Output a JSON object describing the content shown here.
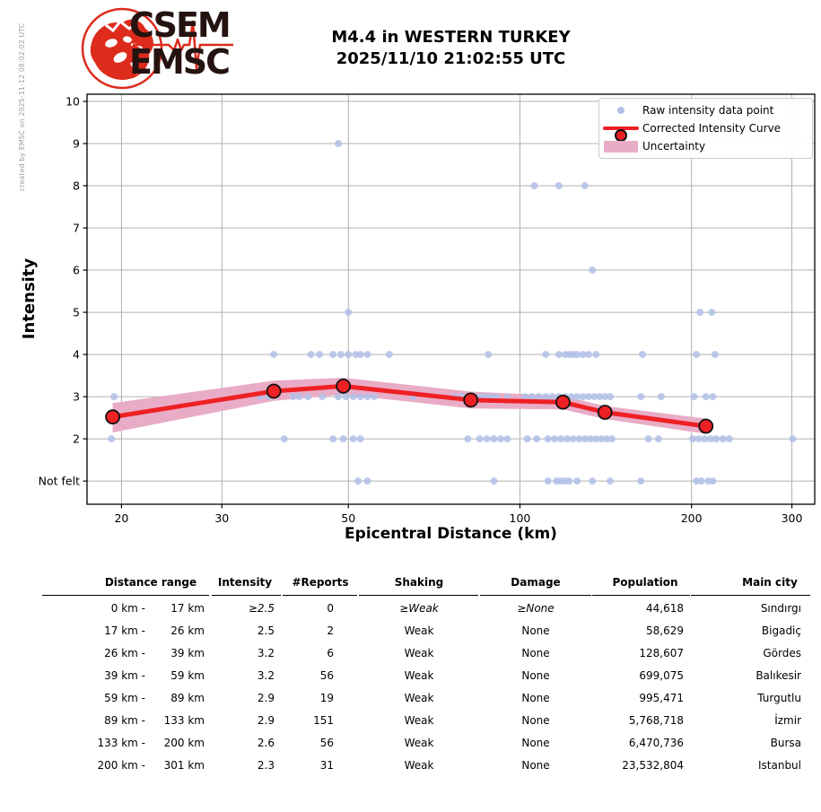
{
  "credit": "created by EMSC on 2025-11-12 08:02:02 UTC",
  "logo": {
    "line1": "CSEM",
    "line2": "EMSC"
  },
  "title": {
    "line1": "M4.4 in WESTERN TURKEY",
    "line2": "2025/11/10 21:02:55 UTC"
  },
  "chart_data": {
    "type": "scatter",
    "title": "M4.4 in WESTERN TURKEY 2025/11/10 21:02:55 UTC",
    "xlabel": "Epicentral Distance (km)",
    "ylabel": "Intensity",
    "x_scale": "log",
    "grid": true,
    "legend_position": "upper right",
    "xlim": [
      17.4,
      329
    ],
    "ylim": [
      0.45,
      10.17
    ],
    "x_ticks": [
      20,
      30,
      50,
      100,
      200,
      300
    ],
    "y_ticks": [
      {
        "value": 10,
        "label": "10"
      },
      {
        "value": 9,
        "label": "9"
      },
      {
        "value": 8,
        "label": "8"
      },
      {
        "value": 7,
        "label": "7"
      },
      {
        "value": 6,
        "label": "6"
      },
      {
        "value": 5,
        "label": "5"
      },
      {
        "value": 4,
        "label": "4"
      },
      {
        "value": 3,
        "label": "3"
      },
      {
        "value": 2,
        "label": "2"
      },
      {
        "value": 1,
        "label": "Not felt"
      }
    ],
    "legend_labels": [
      "Raw intensity data point",
      "Corrected Intensity Curve",
      "Uncertainty"
    ],
    "colors": {
      "raw_point": "#b2bfe8",
      "curve": "#ee2024",
      "marker_edge": "#111111",
      "band": "#e9acc6",
      "grid": "#b0b0b0",
      "spine": "#000000"
    },
    "raw_points": [
      [
        48,
        9
      ],
      [
        106,
        8
      ],
      [
        117,
        8
      ],
      [
        130,
        8
      ],
      [
        134,
        6
      ],
      [
        50,
        5
      ],
      [
        207,
        5
      ],
      [
        217,
        5
      ],
      [
        37,
        4
      ],
      [
        43,
        4
      ],
      [
        44.5,
        4
      ],
      [
        47,
        4
      ],
      [
        48.5,
        4
      ],
      [
        50,
        4
      ],
      [
        51.5,
        4
      ],
      [
        52.5,
        4
      ],
      [
        54,
        4
      ],
      [
        59,
        4
      ],
      [
        88,
        4
      ],
      [
        111,
        4
      ],
      [
        117,
        4
      ],
      [
        120,
        4
      ],
      [
        122,
        4
      ],
      [
        124,
        4
      ],
      [
        126,
        4
      ],
      [
        129,
        4
      ],
      [
        132,
        4
      ],
      [
        136,
        4
      ],
      [
        164,
        4
      ],
      [
        204,
        4
      ],
      [
        220,
        4
      ],
      [
        19.4,
        3
      ],
      [
        35,
        3
      ],
      [
        36.2,
        3
      ],
      [
        40,
        3
      ],
      [
        41,
        3
      ],
      [
        42.5,
        3
      ],
      [
        45,
        3
      ],
      [
        48,
        3
      ],
      [
        49.5,
        3
      ],
      [
        51,
        3
      ],
      [
        52.5,
        3
      ],
      [
        54,
        3
      ],
      [
        55.5,
        3
      ],
      [
        65,
        3
      ],
      [
        77,
        3
      ],
      [
        79,
        3
      ],
      [
        83,
        3
      ],
      [
        85,
        3
      ],
      [
        87,
        3
      ],
      [
        89,
        3
      ],
      [
        91,
        3
      ],
      [
        95,
        3
      ],
      [
        102,
        3
      ],
      [
        105,
        3
      ],
      [
        108,
        3
      ],
      [
        111,
        3
      ],
      [
        114,
        3
      ],
      [
        117,
        3
      ],
      [
        120,
        3
      ],
      [
        123,
        3
      ],
      [
        126,
        3
      ],
      [
        129,
        3
      ],
      [
        132,
        3
      ],
      [
        135,
        3
      ],
      [
        138,
        3
      ],
      [
        141,
        3
      ],
      [
        144,
        3
      ],
      [
        163,
        3
      ],
      [
        177,
        3
      ],
      [
        202,
        3
      ],
      [
        212,
        3
      ],
      [
        218,
        3
      ],
      [
        19.2,
        2
      ],
      [
        38.6,
        2
      ],
      [
        47,
        2
      ],
      [
        49,
        2
      ],
      [
        51,
        2
      ],
      [
        52.5,
        2
      ],
      [
        81,
        2
      ],
      [
        85,
        2
      ],
      [
        87.5,
        2
      ],
      [
        90,
        2
      ],
      [
        92.5,
        2
      ],
      [
        95,
        2
      ],
      [
        103,
        2
      ],
      [
        107,
        2
      ],
      [
        112,
        2
      ],
      [
        115,
        2
      ],
      [
        118,
        2
      ],
      [
        121,
        2
      ],
      [
        124,
        2
      ],
      [
        127,
        2
      ],
      [
        130,
        2
      ],
      [
        133,
        2
      ],
      [
        136,
        2
      ],
      [
        139,
        2
      ],
      [
        142,
        2
      ],
      [
        145,
        2
      ],
      [
        168,
        2
      ],
      [
        175,
        2
      ],
      [
        201,
        2
      ],
      [
        206,
        2
      ],
      [
        211,
        2
      ],
      [
        216,
        2
      ],
      [
        221,
        2
      ],
      [
        227,
        2
      ],
      [
        233,
        2
      ],
      [
        301,
        2
      ],
      [
        52,
        1
      ],
      [
        54,
        1
      ],
      [
        90,
        1
      ],
      [
        112,
        1
      ],
      [
        116,
        1
      ],
      [
        118,
        1
      ],
      [
        120,
        1
      ],
      [
        122,
        1
      ],
      [
        126,
        1
      ],
      [
        134,
        1
      ],
      [
        144,
        1
      ],
      [
        163,
        1
      ],
      [
        204,
        1
      ],
      [
        208,
        1
      ],
      [
        214,
        1
      ],
      [
        218,
        1
      ]
    ],
    "corrected_curve": {
      "x": [
        19.3,
        37,
        49,
        82,
        119,
        141,
        212
      ],
      "y": [
        2.52,
        3.13,
        3.25,
        2.92,
        2.87,
        2.63,
        2.3
      ]
    },
    "uncertainty_band": {
      "x": [
        19.3,
        37,
        49,
        82,
        119,
        141,
        212
      ],
      "upper": [
        2.85,
        3.38,
        3.45,
        3.12,
        3.02,
        2.78,
        2.48
      ],
      "lower": [
        2.15,
        2.9,
        3.05,
        2.72,
        2.7,
        2.47,
        2.12
      ]
    }
  },
  "table": {
    "headers": [
      "Distance range",
      "Intensity",
      "#Reports",
      "Shaking",
      "Damage",
      "Population",
      "Main city"
    ],
    "rows": [
      {
        "range_left": "0 km -",
        "range_right": "17 km",
        "intensity": "≥2.5",
        "reports": "0",
        "shaking": "≥Weak",
        "damage": "≥None",
        "population": "44,618",
        "city": "Sındırgı",
        "italic": true
      },
      {
        "range_left": "17 km -",
        "range_right": "26 km",
        "intensity": "2.5",
        "reports": "2",
        "shaking": "Weak",
        "damage": "None",
        "population": "58,629",
        "city": "Bigadiç",
        "italic": false
      },
      {
        "range_left": "26 km -",
        "range_right": "39 km",
        "intensity": "3.2",
        "reports": "6",
        "shaking": "Weak",
        "damage": "None",
        "population": "128,607",
        "city": "Gördes",
        "italic": false
      },
      {
        "range_left": "39 km -",
        "range_right": "59 km",
        "intensity": "3.2",
        "reports": "56",
        "shaking": "Weak",
        "damage": "None",
        "population": "699,075",
        "city": "Balıkesir",
        "italic": false
      },
      {
        "range_left": "59 km -",
        "range_right": "89 km",
        "intensity": "2.9",
        "reports": "19",
        "shaking": "Weak",
        "damage": "None",
        "population": "995,471",
        "city": "Turgutlu",
        "italic": false
      },
      {
        "range_left": "89 km -",
        "range_right": "133 km",
        "intensity": "2.9",
        "reports": "151",
        "shaking": "Weak",
        "damage": "None",
        "population": "5,768,718",
        "city": "İzmir",
        "italic": false
      },
      {
        "range_left": "133 km -",
        "range_right": "200 km",
        "intensity": "2.6",
        "reports": "56",
        "shaking": "Weak",
        "damage": "None",
        "population": "6,470,736",
        "city": "Bursa",
        "italic": false
      },
      {
        "range_left": "200 km -",
        "range_right": "301 km",
        "intensity": "2.3",
        "reports": "31",
        "shaking": "Weak",
        "damage": "None",
        "population": "23,532,804",
        "city": "Istanbul",
        "italic": false
      }
    ]
  }
}
